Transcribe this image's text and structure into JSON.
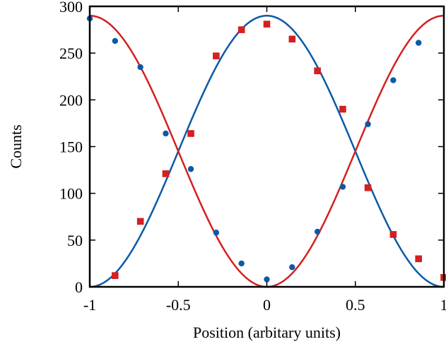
{
  "chart_data": {
    "type": "scatter",
    "title": "",
    "xlabel": "Position (arbitary units)",
    "ylabel": "Counts",
    "xlim": [
      -1,
      1
    ],
    "ylim": [
      0,
      300
    ],
    "x_ticks": [
      -1,
      -0.5,
      0,
      0.5,
      1
    ],
    "x_tick_labels": [
      "-1",
      "-0.5",
      "0",
      "0.5",
      "1"
    ],
    "y_ticks": [
      0,
      50,
      100,
      150,
      200,
      250,
      300
    ],
    "y_tick_labels": [
      "0",
      "50",
      "100",
      "150",
      "200",
      "250",
      "300"
    ],
    "grid": false,
    "legend": "none",
    "series": [
      {
        "marker": "circle",
        "color": "#0a5aa8",
        "points": [
          {
            "x": -1.0,
            "y": 287
          },
          {
            "x": -0.857,
            "y": 263
          },
          {
            "x": -0.714,
            "y": 235
          },
          {
            "x": -0.571,
            "y": 164
          },
          {
            "x": -0.429,
            "y": 126
          },
          {
            "x": -0.286,
            "y": 58
          },
          {
            "x": -0.143,
            "y": 25
          },
          {
            "x": 0.0,
            "y": 8
          },
          {
            "x": 0.143,
            "y": 21
          },
          {
            "x": 0.286,
            "y": 59
          },
          {
            "x": 0.429,
            "y": 107
          },
          {
            "x": 0.571,
            "y": 174
          },
          {
            "x": 0.714,
            "y": 221
          },
          {
            "x": 0.857,
            "y": 261
          }
        ],
        "fit": {
          "type": "cos2",
          "amplitude": 290,
          "phase": 0,
          "period": 2
        }
      },
      {
        "marker": "square",
        "color": "#d42020",
        "points": [
          {
            "x": -0.857,
            "y": 12
          },
          {
            "x": -0.714,
            "y": 70
          },
          {
            "x": -0.571,
            "y": 121
          },
          {
            "x": -0.429,
            "y": 164
          },
          {
            "x": -0.286,
            "y": 247
          },
          {
            "x": -0.143,
            "y": 275
          },
          {
            "x": 0.0,
            "y": 281
          },
          {
            "x": 0.143,
            "y": 265
          },
          {
            "x": 0.286,
            "y": 231
          },
          {
            "x": 0.429,
            "y": 190
          },
          {
            "x": 0.571,
            "y": 106
          },
          {
            "x": 0.714,
            "y": 56
          },
          {
            "x": 0.857,
            "y": 30
          },
          {
            "x": 1.0,
            "y": 10
          }
        ],
        "fit": {
          "type": "cos2",
          "amplitude": 290,
          "phase": 1,
          "period": 2
        }
      }
    ]
  }
}
